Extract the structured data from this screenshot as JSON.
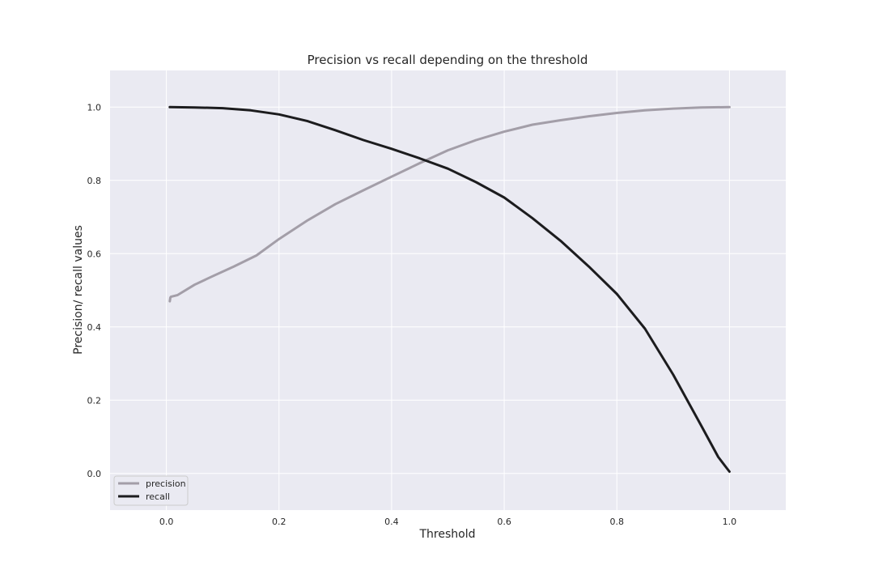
{
  "chart_data": {
    "type": "line",
    "title": "Precision vs recall depending on the threshold",
    "xlabel": "Threshold",
    "ylabel": "Precision/ recall values",
    "xlim": [
      -0.1,
      1.1
    ],
    "ylim": [
      -0.1,
      1.1
    ],
    "x_ticks": [
      "0.0",
      "0.2",
      "0.4",
      "0.6",
      "0.8",
      "1.0"
    ],
    "y_ticks": [
      "0.0",
      "0.2",
      "0.4",
      "0.6",
      "0.8",
      "1.0"
    ],
    "grid": true,
    "legend_position": "bottom-left",
    "series": [
      {
        "name": "precision",
        "color": "#a39ea8",
        "x": [
          0.006,
          0.007,
          0.008,
          0.02,
          0.05,
          0.08,
          0.12,
          0.16,
          0.2,
          0.25,
          0.3,
          0.35,
          0.4,
          0.45,
          0.5,
          0.55,
          0.6,
          0.65,
          0.7,
          0.75,
          0.8,
          0.85,
          0.9,
          0.95,
          1.0
        ],
        "y": [
          0.47,
          0.48,
          0.482,
          0.487,
          0.515,
          0.537,
          0.565,
          0.595,
          0.64,
          0.69,
          0.735,
          0.773,
          0.81,
          0.847,
          0.882,
          0.91,
          0.933,
          0.952,
          0.964,
          0.975,
          0.984,
          0.991,
          0.996,
          0.999,
          1.0
        ]
      },
      {
        "name": "recall",
        "color": "#1c1c1e",
        "x": [
          0.006,
          0.05,
          0.1,
          0.15,
          0.2,
          0.25,
          0.3,
          0.35,
          0.4,
          0.45,
          0.5,
          0.55,
          0.6,
          0.65,
          0.7,
          0.75,
          0.8,
          0.85,
          0.9,
          0.95,
          0.98,
          0.995,
          1.0
        ],
        "y": [
          1.0,
          0.999,
          0.997,
          0.991,
          0.98,
          0.962,
          0.937,
          0.91,
          0.886,
          0.86,
          0.832,
          0.795,
          0.753,
          0.697,
          0.635,
          0.565,
          0.49,
          0.395,
          0.27,
          0.13,
          0.045,
          0.015,
          0.005
        ]
      }
    ]
  }
}
